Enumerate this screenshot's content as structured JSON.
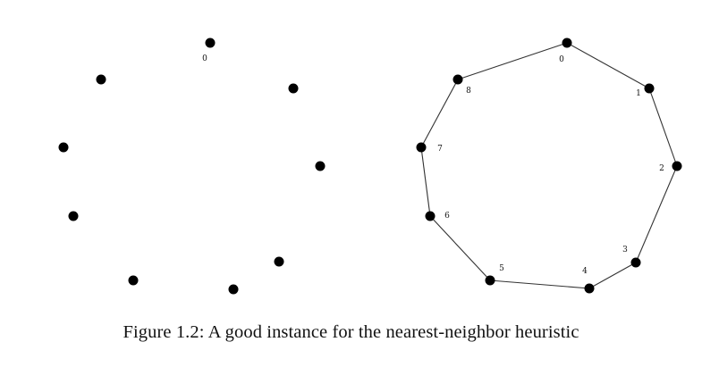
{
  "caption": "Figure 1.2: A good instance for the nearest-neighbor heuristic",
  "colors": {
    "node": "#000000",
    "edge": "#333333",
    "text": "#111111"
  },
  "left_panel": {
    "labeled_nodes": [
      {
        "label": "0"
      }
    ],
    "node_count": 9
  },
  "right_panel": {
    "node_labels": [
      "0",
      "1",
      "2",
      "3",
      "4",
      "5",
      "6",
      "7",
      "8"
    ],
    "tour_order": [
      "0",
      "1",
      "2",
      "3",
      "4",
      "5",
      "6",
      "7",
      "8",
      "0"
    ]
  }
}
